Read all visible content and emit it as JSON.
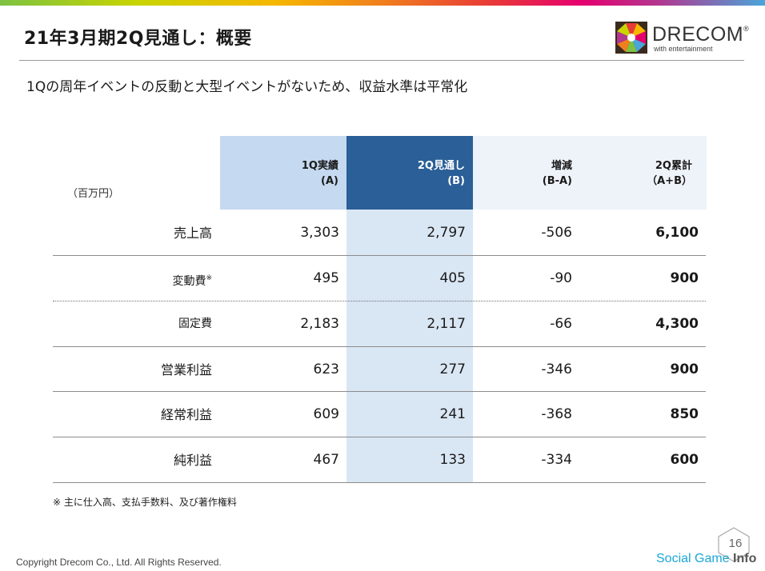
{
  "slide": {
    "title": "21年3月期2Q見通し：概要",
    "subtitle": "1Qの周年イベントの反動と大型イベントがないため、収益水準は平常化",
    "unit": "（百万円）",
    "logo": {
      "word": "DRECOM",
      "reg": "®",
      "tagline": "with entertainment"
    },
    "columns": [
      {
        "line1": "1Q実績",
        "line2": "(A)"
      },
      {
        "line1": "2Q見通し",
        "line2": "(B)"
      },
      {
        "line1": "増減",
        "line2": "(B-A)"
      },
      {
        "line1": "2Q累計",
        "line2": "（A+B）"
      }
    ],
    "rows": [
      {
        "label": "売上高",
        "mark": "",
        "a": "3,303",
        "b": "2,797",
        "diff": "-506",
        "total": "6,100"
      },
      {
        "label": "変動費",
        "mark": "※",
        "a": "495",
        "b": "405",
        "diff": "-90",
        "total": "900"
      },
      {
        "label": "固定費",
        "mark": "",
        "a": "2,183",
        "b": "2,117",
        "diff": "-66",
        "total": "4,300"
      },
      {
        "label": "営業利益",
        "mark": "",
        "a": "623",
        "b": "277",
        "diff": "-346",
        "total": "900"
      },
      {
        "label": "経常利益",
        "mark": "",
        "a": "609",
        "b": "241",
        "diff": "-368",
        "total": "850"
      },
      {
        "label": "純利益",
        "mark": "",
        "a": "467",
        "b": "133",
        "diff": "-334",
        "total": "600"
      }
    ],
    "note": "※ 主に仕入高、支払手数料、及び著作権料",
    "copyright": "Copyright Drecom Co., Ltd. All Rights Reserved.",
    "page_number": "16",
    "watermark": {
      "part1": "Social Game ",
      "part2": "Info"
    }
  },
  "colors": {
    "header_a": "#c5d9f0",
    "header_b": "#2a5f97",
    "header_other": "#eef3fa",
    "column_b_fill": "#d9e6f4",
    "watermark": "#1aa7d8"
  }
}
